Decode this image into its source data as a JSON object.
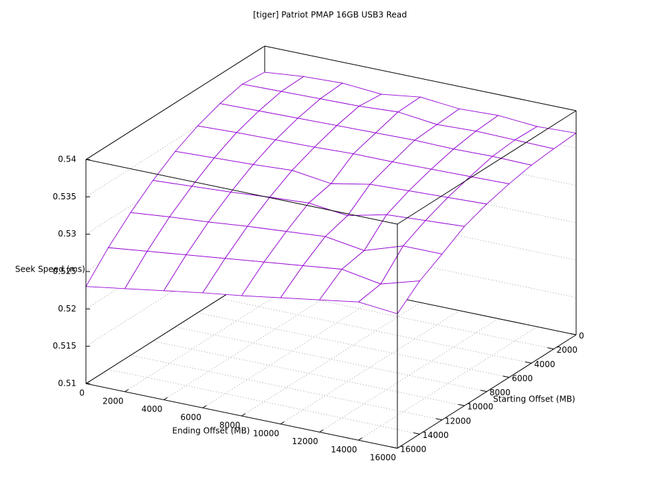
{
  "chart_data": {
    "type": "surface",
    "title": "[tiger] Patriot PMAP 16GB USB3 Read",
    "xlabel": "Ending Offset (MB)",
    "ylabel": "Starting Offset (MB)",
    "zlabel": "Seek Speed (ms)",
    "color": "#9400d3",
    "x": [
      0,
      2000,
      4000,
      6000,
      8000,
      10000,
      12000,
      14000,
      16000
    ],
    "y": [
      0,
      2000,
      4000,
      6000,
      8000,
      10000,
      12000,
      14000,
      16000
    ],
    "z": [
      [
        0.5365,
        0.537,
        0.5372,
        0.5368,
        0.5375,
        0.537,
        0.5372,
        0.5368,
        0.537
      ],
      [
        0.5368,
        0.5369,
        0.537,
        0.5371,
        0.5374,
        0.5368,
        0.537,
        0.5369,
        0.5368
      ],
      [
        0.5361,
        0.5362,
        0.5363,
        0.5364,
        0.5365,
        0.5366,
        0.5365,
        0.5366,
        0.5365
      ],
      [
        0.535,
        0.5352,
        0.5353,
        0.5354,
        0.5356,
        0.5356,
        0.5357,
        0.5358,
        0.5359
      ],
      [
        0.5335,
        0.5337,
        0.5339,
        0.5342,
        0.5335,
        0.5345,
        0.5347,
        0.5349,
        0.5351
      ],
      [
        0.5315,
        0.5318,
        0.5321,
        0.5325,
        0.5328,
        0.5322,
        0.5334,
        0.5337,
        0.534
      ],
      [
        0.5291,
        0.5296,
        0.53,
        0.5305,
        0.5309,
        0.5313,
        0.5305,
        0.5322,
        0.5322
      ],
      [
        0.5263,
        0.5269,
        0.5275,
        0.5281,
        0.5287,
        0.5293,
        0.5299,
        0.529,
        0.5305
      ],
      [
        0.523,
        0.5238,
        0.5246,
        0.5254,
        0.5261,
        0.5269,
        0.5277,
        0.5285,
        0.528
      ]
    ],
    "xlim": [
      0,
      16000
    ],
    "ylim": [
      0,
      16000
    ],
    "zlim": [
      0.51,
      0.54
    ],
    "xticks": [
      0,
      2000,
      4000,
      6000,
      8000,
      10000,
      12000,
      14000,
      16000
    ],
    "yticks": [
      0,
      2000,
      4000,
      6000,
      8000,
      10000,
      12000,
      14000,
      16000
    ],
    "zticks": [
      0.51,
      0.515,
      0.52,
      0.525,
      0.53,
      0.535,
      0.54
    ],
    "grid": true
  }
}
